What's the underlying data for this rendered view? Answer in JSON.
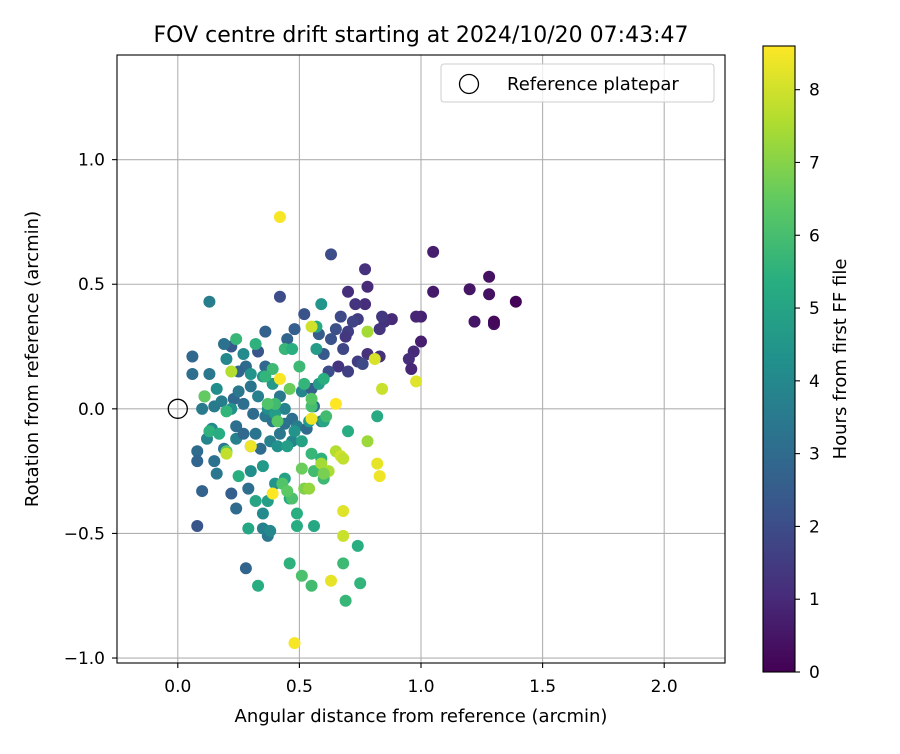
{
  "chart_data": {
    "type": "scatter",
    "title": "FOV centre drift starting at 2024/10/20 07:43:47",
    "xlabel": "Angular distance from reference (arcmin)",
    "ylabel": "Rotation from reference (arcmin)",
    "xlim": [
      -0.25,
      2.25
    ],
    "ylim": [
      -1.02,
      1.42
    ],
    "xticks": [
      "0.0",
      "0.5",
      "1.0",
      "1.5",
      "2.0"
    ],
    "yticks": [
      "−1.0",
      "−0.5",
      "0.0",
      "0.5",
      "1.0"
    ],
    "grid": true,
    "colormap": "viridis",
    "colorbar": {
      "label": "Hours from first FF file",
      "range": [
        0,
        8.6
      ],
      "ticks": [
        "0",
        "1",
        "2",
        "3",
        "4",
        "5",
        "6",
        "7",
        "8"
      ]
    },
    "legend": {
      "placement": "top-right",
      "entries": [
        {
          "label": "Reference platepar",
          "marker": "open-circle"
        }
      ]
    },
    "reference_point": [
      0.0,
      0.0
    ],
    "series": [
      {
        "points": [
          [
            1.39,
            0.43,
            0.1
          ],
          [
            1.3,
            0.34,
            0.3
          ],
          [
            1.3,
            0.35,
            0.2
          ],
          [
            1.28,
            0.53,
            0.4
          ],
          [
            1.28,
            0.46,
            0.4
          ],
          [
            1.22,
            0.35,
            0.5
          ],
          [
            1.2,
            0.48,
            0.5
          ],
          [
            1.05,
            0.63,
            0.7
          ],
          [
            1.05,
            0.47,
            0.6
          ],
          [
            1.0,
            0.37,
            0.8
          ],
          [
            0.98,
            0.37,
            0.9
          ],
          [
            1.0,
            0.27,
            0.7
          ],
          [
            0.97,
            0.23,
            1.0
          ],
          [
            0.95,
            0.2,
            1.1
          ],
          [
            0.96,
            0.16,
            0.9
          ],
          [
            0.88,
            0.36,
            1.0
          ],
          [
            0.85,
            0.35,
            1.2
          ],
          [
            0.84,
            0.37,
            1.4
          ],
          [
            0.83,
            0.32,
            1.3
          ],
          [
            0.83,
            0.21,
            1.2
          ],
          [
            0.78,
            0.49,
            1.0
          ],
          [
            0.77,
            0.56,
            1.2
          ],
          [
            0.77,
            0.42,
            1.1
          ],
          [
            0.73,
            0.42,
            1.3
          ],
          [
            0.74,
            0.36,
            1.5
          ],
          [
            0.72,
            0.35,
            1.7
          ],
          [
            0.7,
            0.31,
            1.6
          ],
          [
            0.69,
            0.29,
            1.4
          ],
          [
            0.68,
            0.24,
            1.8
          ],
          [
            0.66,
            0.17,
            1.3
          ],
          [
            0.7,
            0.15,
            1.6
          ],
          [
            0.74,
            0.19,
            1.5
          ],
          [
            0.78,
            0.22,
            1.2
          ],
          [
            0.76,
            0.18,
            1.9
          ],
          [
            0.7,
            0.47,
            1.1
          ],
          [
            0.63,
            0.62,
            2.0
          ],
          [
            0.67,
            0.37,
            1.9
          ],
          [
            0.65,
            0.32,
            2.1
          ],
          [
            0.63,
            0.28,
            2.2
          ],
          [
            0.6,
            0.22,
            2.4
          ],
          [
            0.62,
            0.15,
            2.0
          ],
          [
            0.58,
            0.3,
            2.5
          ],
          [
            0.52,
            0.38,
            2.2
          ],
          [
            0.48,
            0.32,
            2.6
          ],
          [
            0.45,
            0.28,
            2.8
          ],
          [
            0.42,
            0.45,
            2.0
          ],
          [
            0.36,
            0.31,
            2.7
          ],
          [
            0.33,
            0.23,
            2.3
          ],
          [
            0.36,
            0.17,
            2.9
          ],
          [
            0.28,
            0.17,
            3.0
          ],
          [
            0.25,
            0.15,
            2.8
          ],
          [
            0.22,
            0.25,
            2.4
          ],
          [
            0.19,
            0.26,
            3.2
          ],
          [
            0.13,
            0.14,
            3.4
          ],
          [
            0.13,
            0.43,
            3.6
          ],
          [
            0.06,
            0.21,
            2.9
          ],
          [
            0.06,
            0.14,
            3.1
          ],
          [
            0.11,
            0.05,
            3.3
          ],
          [
            0.15,
            0.01,
            3.5
          ],
          [
            0.18,
            0.03,
            3.6
          ],
          [
            0.23,
            0.04,
            2.9
          ],
          [
            0.25,
            0.07,
            3.4
          ],
          [
            0.27,
            0.02,
            3.1
          ],
          [
            0.3,
            0.09,
            3.3
          ],
          [
            0.33,
            0.05,
            3.7
          ],
          [
            0.31,
            -0.02,
            3.0
          ],
          [
            0.36,
            -0.03,
            3.4
          ],
          [
            0.39,
            -0.05,
            3.2
          ],
          [
            0.42,
            0.05,
            3.5
          ],
          [
            0.44,
            0.0,
            3.8
          ],
          [
            0.47,
            -0.04,
            3.1
          ],
          [
            0.49,
            -0.07,
            3.6
          ],
          [
            0.51,
            0.07,
            3.9
          ],
          [
            0.55,
            0.08,
            2.6
          ],
          [
            0.56,
            0.01,
            3.2
          ],
          [
            0.59,
            -0.05,
            3.7
          ],
          [
            0.53,
            -0.08,
            3.0
          ],
          [
            0.1,
            0.0,
            3.5
          ],
          [
            0.12,
            -0.12,
            3.9
          ],
          [
            0.08,
            -0.17,
            3.0
          ],
          [
            0.08,
            -0.21,
            2.8
          ],
          [
            0.15,
            -0.21,
            3.2
          ],
          [
            0.19,
            -0.16,
            3.4
          ],
          [
            0.24,
            -0.12,
            3.7
          ],
          [
            0.24,
            -0.07,
            3.1
          ],
          [
            0.27,
            -0.1,
            2.9
          ],
          [
            0.3,
            -0.15,
            3.6
          ],
          [
            0.32,
            -0.1,
            3.3
          ],
          [
            0.34,
            -0.16,
            3.0
          ],
          [
            0.38,
            -0.13,
            3.8
          ],
          [
            0.42,
            -0.1,
            3.4
          ],
          [
            0.44,
            -0.06,
            3.2
          ],
          [
            0.47,
            -0.13,
            3.9
          ],
          [
            0.1,
            -0.33,
            2.7
          ],
          [
            0.08,
            -0.47,
            2.3
          ],
          [
            0.16,
            -0.26,
            3.4
          ],
          [
            0.22,
            -0.34,
            2.6
          ],
          [
            0.24,
            -0.4,
            3.0
          ],
          [
            0.29,
            -0.32,
            3.1
          ],
          [
            0.28,
            -0.64,
            2.8
          ],
          [
            0.37,
            -0.51,
            3.4
          ],
          [
            0.35,
            -0.48,
            3.7
          ],
          [
            0.38,
            -0.49,
            4.0
          ],
          [
            0.14,
            -0.08,
            4.1
          ],
          [
            0.2,
            0.2,
            4.0
          ],
          [
            0.16,
            0.08,
            4.2
          ],
          [
            0.22,
            0.0,
            4.3
          ],
          [
            0.27,
            0.22,
            4.1
          ],
          [
            0.3,
            0.14,
            4.4
          ],
          [
            0.35,
            0.13,
            4.5
          ],
          [
            0.39,
            0.1,
            4.6
          ],
          [
            0.37,
            0.0,
            4.2
          ],
          [
            0.4,
            -0.02,
            4.7
          ],
          [
            0.41,
            -0.15,
            4.3
          ],
          [
            0.45,
            -0.15,
            4.8
          ],
          [
            0.48,
            -0.09,
            4.4
          ],
          [
            0.51,
            -0.13,
            4.9
          ],
          [
            0.54,
            -0.05,
            4.6
          ],
          [
            0.57,
            0.24,
            4.7
          ],
          [
            0.59,
            0.42,
            4.5
          ],
          [
            0.58,
            0.1,
            4.8
          ],
          [
            0.6,
            -0.05,
            5.0
          ],
          [
            0.3,
            -0.25,
            4.2
          ],
          [
            0.35,
            -0.23,
            4.6
          ],
          [
            0.4,
            -0.3,
            4.4
          ],
          [
            0.44,
            -0.28,
            4.9
          ],
          [
            0.37,
            -0.37,
            4.8
          ],
          [
            0.32,
            -0.37,
            5.0
          ],
          [
            0.35,
            -0.42,
            4.1
          ],
          [
            0.46,
            -0.36,
            5.2
          ],
          [
            0.49,
            -0.42,
            5.4
          ],
          [
            0.49,
            -0.47,
            5.3
          ],
          [
            0.56,
            -0.47,
            5.1
          ],
          [
            0.13,
            -0.09,
            5.5
          ],
          [
            0.17,
            -0.1,
            5.3
          ],
          [
            0.2,
            -0.01,
            5.6
          ],
          [
            0.25,
            -0.27,
            5.4
          ],
          [
            0.24,
            0.28,
            5.7
          ],
          [
            0.32,
            0.26,
            5.5
          ],
          [
            0.39,
            0.16,
            5.8
          ],
          [
            0.36,
            0.13,
            5.6
          ],
          [
            0.4,
            0.02,
            5.9
          ],
          [
            0.44,
            0.24,
            5.7
          ],
          [
            0.47,
            0.24,
            5.4
          ],
          [
            0.5,
            0.17,
            5.8
          ],
          [
            0.52,
            0.1,
            5.6
          ],
          [
            0.55,
            0.01,
            6.0
          ],
          [
            0.55,
            -0.18,
            5.7
          ],
          [
            0.56,
            -0.25,
            5.9
          ],
          [
            0.59,
            -0.2,
            5.5
          ],
          [
            0.6,
            -0.28,
            5.8
          ],
          [
            0.57,
            0.33,
            5.2
          ],
          [
            0.6,
            0.12,
            5.4
          ],
          [
            0.61,
            -0.03,
            5.9
          ],
          [
            0.7,
            -0.09,
            5.3
          ],
          [
            0.74,
            -0.55,
            5.4
          ],
          [
            0.68,
            -0.62,
            5.8
          ],
          [
            0.69,
            -0.77,
            5.7
          ],
          [
            0.75,
            -0.7,
            5.6
          ],
          [
            0.55,
            -0.71,
            5.9
          ],
          [
            0.51,
            -0.67,
            6.1
          ],
          [
            0.46,
            -0.62,
            5.5
          ],
          [
            0.33,
            -0.71,
            5.3
          ],
          [
            0.29,
            -0.48,
            5.1
          ],
          [
            0.47,
            -0.36,
            6.1
          ],
          [
            0.43,
            -0.3,
            6.2
          ],
          [
            0.45,
            -0.33,
            6.4
          ],
          [
            0.82,
            -0.03,
            5.2
          ],
          [
            0.41,
            -0.05,
            6.3
          ],
          [
            0.2,
            -0.17,
            6.4
          ],
          [
            0.11,
            0.05,
            6.5
          ],
          [
            0.37,
            0.02,
            6.2
          ],
          [
            0.46,
            0.08,
            6.6
          ],
          [
            0.55,
            0.04,
            6.3
          ],
          [
            0.51,
            -0.24,
            6.6
          ],
          [
            0.52,
            -0.32,
            6.9
          ],
          [
            0.54,
            -0.32,
            7.2
          ],
          [
            0.59,
            -0.22,
            7.4
          ],
          [
            0.62,
            -0.25,
            7.5
          ],
          [
            0.6,
            -0.26,
            6.8
          ],
          [
            0.65,
            -0.17,
            7.6
          ],
          [
            0.67,
            -0.19,
            8.0
          ],
          [
            0.68,
            -0.2,
            7.8
          ],
          [
            0.78,
            -0.13,
            7.3
          ],
          [
            0.82,
            -0.22,
            8.3
          ],
          [
            0.83,
            -0.27,
            8.4
          ],
          [
            0.68,
            -0.51,
            7.9
          ],
          [
            0.68,
            -0.41,
            8.2
          ],
          [
            0.63,
            -0.69,
            8.3
          ],
          [
            0.48,
            -0.94,
            8.5
          ],
          [
            0.42,
            0.77,
            8.5
          ],
          [
            0.55,
            0.33,
            8.0
          ],
          [
            0.78,
            0.31,
            7.4
          ],
          [
            0.81,
            0.2,
            8.1
          ],
          [
            0.84,
            0.08,
            7.9
          ],
          [
            0.98,
            0.11,
            8.2
          ],
          [
            0.65,
            0.02,
            8.6
          ],
          [
            0.55,
            -0.04,
            8.4
          ],
          [
            0.42,
            0.12,
            8.5
          ],
          [
            0.3,
            -0.15,
            8.4
          ],
          [
            0.2,
            -0.18,
            7.8
          ],
          [
            0.22,
            0.15,
            7.6
          ],
          [
            0.39,
            -0.34,
            8.6
          ]
        ]
      }
    ]
  }
}
